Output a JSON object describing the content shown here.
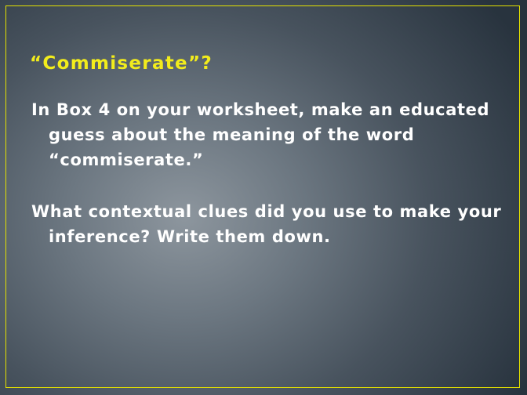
{
  "slide": {
    "title": "“Commiserate”?",
    "paragraphs": [
      "In Box 4 on your worksheet, make an educated guess about the meaning of the word “commiserate.”",
      "What contextual clues did you use to make your inference?  Write them down."
    ],
    "colors": {
      "title": "#f2ec1c",
      "border": "#e4e100",
      "text": "#ffffff",
      "background_center": "#8d969e",
      "background_edge": "#28333e"
    }
  }
}
